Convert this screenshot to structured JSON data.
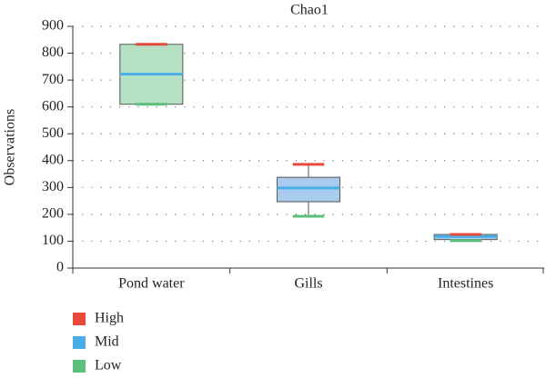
{
  "chart_data": {
    "type": "box",
    "title": "Chao1",
    "y_label": "Observations",
    "categories": [
      "Pond water",
      "Gills",
      "Intestines"
    ],
    "stats": [
      {
        "min": 610,
        "q1": 610,
        "median": 722,
        "q3": 833,
        "max": 833,
        "color": "#b5e0c3"
      },
      {
        "min": 193,
        "q1": 247,
        "median": 298,
        "q3": 338,
        "max": 386,
        "color": "#a9ccee"
      },
      {
        "min": 102,
        "q1": 106,
        "median": 117,
        "q3": 125,
        "max": 125,
        "color": "#a9ccee"
      }
    ],
    "legend": [
      {
        "name": "High",
        "color": "#e8493c"
      },
      {
        "name": "Mid",
        "color": "#4aaee6"
      },
      {
        "name": "Low",
        "color": "#5cc07a"
      }
    ],
    "ylim": [
      0,
      900
    ],
    "yticks": [
      0,
      100,
      200,
      300,
      400,
      500,
      600,
      700,
      800,
      900
    ],
    "grid": true
  }
}
